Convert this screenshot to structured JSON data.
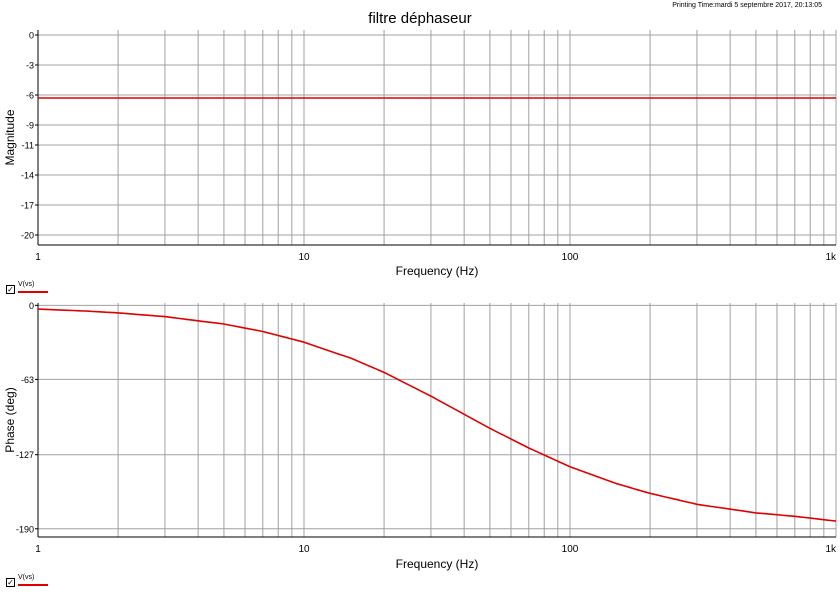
{
  "title": "filtre déphaseur",
  "print_time": "Printing Time:mardi 5 septembre 2017, 20:13:05",
  "colors": {
    "trace": "#e00000",
    "grid": "#a0a0a0",
    "axis": "#000000"
  },
  "chart_data": [
    {
      "type": "line",
      "title": "",
      "xlabel": "Frequency (Hz)",
      "ylabel": "Magnitude",
      "xscale": "log",
      "xlim": [
        1,
        1000
      ],
      "ylim": [
        -21,
        0.5
      ],
      "x_ticks": [
        1,
        10,
        100,
        1000
      ],
      "x_tick_labels": [
        "1",
        "10",
        "100",
        "1k"
      ],
      "y_ticks": [
        0,
        -3,
        -6,
        -9,
        -11,
        -14,
        -17,
        -20
      ],
      "y_tick_labels": [
        "0",
        "-3",
        "-6",
        "-9",
        "-11",
        "-14",
        "-17",
        "-20"
      ],
      "grid": true,
      "series": [
        {
          "name": "V(vs)",
          "x": [
            1,
            10,
            100,
            1000
          ],
          "values": [
            -6.3,
            -6.3,
            -6.3,
            -6.3
          ]
        }
      ],
      "legend": {
        "label": "V(vs)",
        "checked": true
      }
    },
    {
      "type": "line",
      "title": "",
      "xlabel": "Frequency (Hz)",
      "ylabel": "Phase (deg)",
      "xscale": "log",
      "xlim": [
        1,
        1000
      ],
      "ylim": [
        -197,
        2
      ],
      "x_ticks": [
        1,
        10,
        100,
        1000
      ],
      "x_tick_labels": [
        "1",
        "10",
        "100",
        "1k"
      ],
      "y_ticks": [
        0,
        -63,
        -127,
        -190
      ],
      "y_tick_labels": [
        "0",
        "-63",
        "-127",
        "-190"
      ],
      "grid": true,
      "series": [
        {
          "name": "V(vs)",
          "x": [
            1,
            1.5,
            2,
            3,
            5,
            7,
            10,
            15,
            20,
            30,
            50,
            70,
            100,
            150,
            200,
            300,
            500,
            700,
            1000
          ],
          "values": [
            -3.2,
            -4.8,
            -6.4,
            -9.6,
            -15.9,
            -22.2,
            -31.3,
            -44.9,
            -57.0,
            -77.2,
            -104.6,
            -121.3,
            -137.3,
            -151.7,
            -159.9,
            -169.2,
            -176.5,
            -179.4,
            -183.5
          ]
        }
      ],
      "legend": {
        "label": "V(vs)",
        "checked": true
      }
    }
  ]
}
